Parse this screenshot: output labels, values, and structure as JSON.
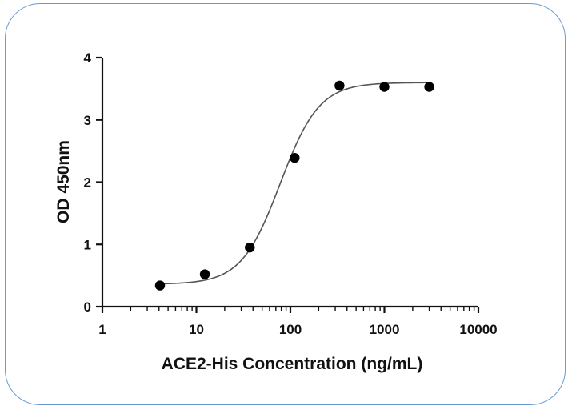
{
  "chart_data": {
    "type": "scatter",
    "title": "",
    "xlabel": "ACE2-His Concentration (ng/mL)",
    "ylabel": "OD 450nm",
    "x_scale": "log",
    "xlim": [
      1,
      10000
    ],
    "ylim": [
      0,
      4
    ],
    "x_ticks": [
      1,
      10,
      100,
      1000,
      10000
    ],
    "x_tick_labels": [
      "1",
      "10",
      "100",
      "1000",
      "10000"
    ],
    "y_ticks": [
      0,
      1,
      2,
      3,
      4
    ],
    "y_tick_labels": [
      "0",
      "1",
      "2",
      "3",
      "4"
    ],
    "grid": false,
    "legend": "none",
    "series": [
      {
        "points": [
          {
            "x": 4.1,
            "y": 0.34
          },
          {
            "x": 12.3,
            "y": 0.52
          },
          {
            "x": 37,
            "y": 0.95
          },
          {
            "x": 111,
            "y": 2.39
          },
          {
            "x": 333,
            "y": 3.55
          },
          {
            "x": 1000,
            "y": 3.53
          },
          {
            "x": 3000,
            "y": 3.53
          }
        ],
        "fit": {
          "model": "4PL",
          "bottom": 0.36,
          "top": 3.6,
          "ec50": 78,
          "hill": 2.1
        }
      }
    ],
    "colors": {
      "points": "#000000",
      "curve": "#555555",
      "axes": "#111111",
      "frame": "#6a9bd1"
    }
  }
}
